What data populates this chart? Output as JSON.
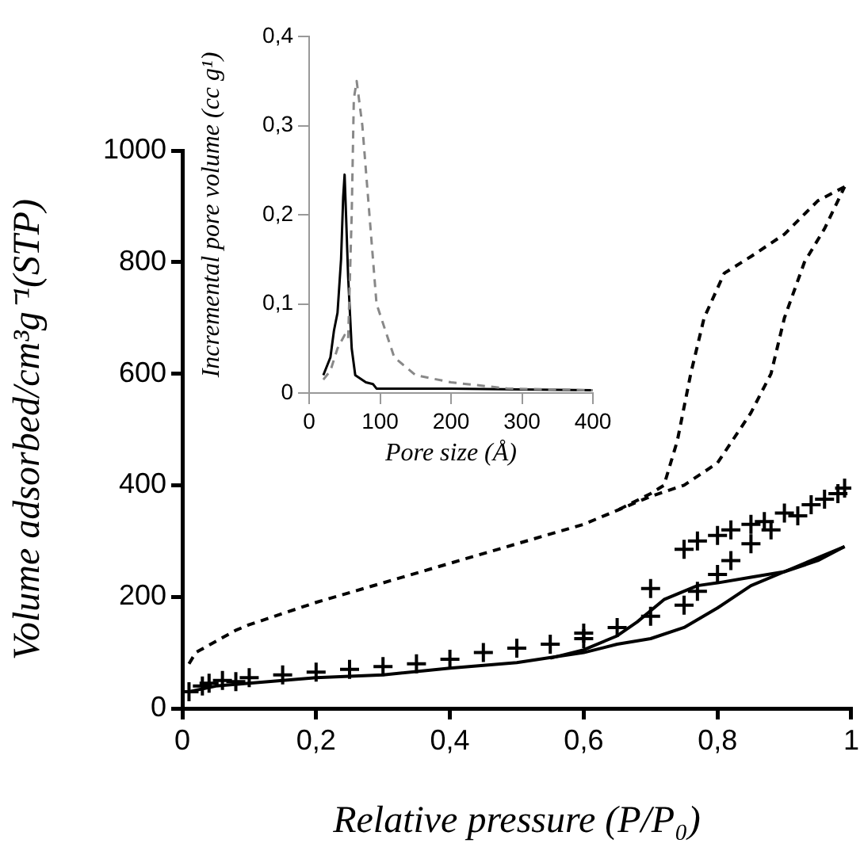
{
  "chart_data": [
    {
      "type": "line",
      "xlabel": "Relative pressure (P/P₀)",
      "ylabel": "Volume adsorbed/cm³g⁻¹(STP)",
      "xlim": [
        0,
        1
      ],
      "ylim": [
        0,
        1000
      ],
      "xticks": [
        0,
        {
          "value": 0.2,
          "label": "0,2"
        },
        {
          "value": 0.4,
          "label": "0,4"
        },
        {
          "value": 0.6,
          "label": "0,6"
        },
        {
          "value": 0.8,
          "label": "0,8"
        },
        1
      ],
      "yticks": [
        0,
        200,
        400,
        600,
        800,
        1000
      ],
      "grid": false,
      "legend": false,
      "series": [
        {
          "type": "line",
          "color": "#000000",
          "line_style": "dashed",
          "marker": "none",
          "x": [
            0.01,
            0.02,
            0.05,
            0.08,
            0.1,
            0.2,
            0.3,
            0.4,
            0.5,
            0.6,
            0.65,
            0.7,
            0.75,
            0.8,
            0.85,
            0.88,
            0.9,
            0.93,
            0.96,
            0.99
          ],
          "values": [
            80,
            100,
            120,
            140,
            150,
            190,
            225,
            260,
            295,
            330,
            355,
            380,
            400,
            440,
            530,
            600,
            700,
            800,
            860,
            935
          ]
        },
        {
          "type": "line",
          "color": "#000000",
          "line_style": "dashed",
          "marker": "none",
          "x": [
            0.99,
            0.95,
            0.9,
            0.85,
            0.81,
            0.78,
            0.76,
            0.74,
            0.72,
            0.7,
            0.65
          ],
          "values": [
            935,
            910,
            850,
            810,
            780,
            700,
            600,
            480,
            400,
            385,
            355
          ]
        },
        {
          "type": "line",
          "color": "#000000",
          "line_style": "solid",
          "marker": "none",
          "x": [
            0.01,
            0.05,
            0.1,
            0.2,
            0.3,
            0.4,
            0.5,
            0.6,
            0.65,
            0.7,
            0.75,
            0.8,
            0.85,
            0.9,
            0.95,
            0.99
          ],
          "values": [
            30,
            40,
            45,
            55,
            60,
            72,
            82,
            100,
            115,
            125,
            145,
            180,
            220,
            245,
            265,
            290
          ]
        },
        {
          "type": "line",
          "color": "#000000",
          "line_style": "solid",
          "marker": "none",
          "x": [
            0.99,
            0.95,
            0.9,
            0.85,
            0.8,
            0.77,
            0.72,
            0.68,
            0.65,
            0.6,
            0.55
          ],
          "values": [
            290,
            270,
            245,
            235,
            225,
            220,
            195,
            155,
            130,
            105,
            90
          ]
        },
        {
          "type": "scatter",
          "color": "#000000",
          "marker": "cross",
          "x": [
            0.01,
            0.02,
            0.03,
            0.04,
            0.05,
            0.06,
            0.08,
            0.1,
            0.15,
            0.2,
            0.25,
            0.3,
            0.35,
            0.4,
            0.45,
            0.5,
            0.55,
            0.6,
            0.6,
            0.65,
            0.7,
            0.7,
            0.75,
            0.77,
            0.8,
            0.82,
            0.85,
            0.75,
            0.77,
            0.8,
            0.82,
            0.85,
            0.87,
            0.88,
            0.9,
            0.92,
            0.94,
            0.96,
            0.98,
            0.99
          ],
          "values": [
            30,
            null,
            40,
            45,
            null,
            50,
            48,
            55,
            60,
            65,
            70,
            75,
            80,
            88,
            100,
            108,
            115,
            125,
            135,
            145,
            165,
            215,
            185,
            210,
            240,
            265,
            295,
            285,
            300,
            310,
            320,
            330,
            335,
            320,
            350,
            345,
            365,
            375,
            385,
            395
          ]
        }
      ]
    },
    {
      "type": "line",
      "xlabel": "Pore size (Å)",
      "ylabel": "Incremental pore volume (cc g¹)",
      "xlim": [
        0,
        400
      ],
      "ylim": [
        0,
        0.4
      ],
      "xticks": [
        0,
        100,
        200,
        300,
        400
      ],
      "yticks": [
        0,
        {
          "value": 0.1,
          "label": "0,1"
        },
        {
          "value": 0.2,
          "label": "0,2"
        },
        {
          "value": 0.3,
          "label": "0,3"
        },
        {
          "value": 0.4,
          "label": "0,4"
        }
      ],
      "grid": false,
      "legend": false,
      "series": [
        {
          "type": "line",
          "color": "#888888",
          "line_style": "dashed",
          "marker": "none",
          "x": [
            20,
            30,
            40,
            50,
            55,
            60,
            63,
            67,
            75,
            85,
            95,
            120,
            150,
            200,
            280,
            400
          ],
          "values": [
            0.015,
            0.025,
            0.05,
            0.065,
            0.06,
            0.2,
            0.33,
            0.35,
            0.3,
            0.2,
            0.1,
            0.04,
            0.02,
            0.012,
            0.005,
            0.003
          ]
        },
        {
          "type": "line",
          "color": "#000000",
          "line_style": "solid",
          "marker": "none",
          "x": [
            20,
            30,
            35,
            40,
            45,
            48,
            50,
            52,
            55,
            60,
            65,
            80,
            90,
            95,
            200,
            400
          ],
          "values": [
            0.02,
            0.04,
            0.07,
            0.09,
            0.15,
            0.22,
            0.245,
            0.2,
            0.13,
            0.05,
            0.02,
            0.012,
            0.01,
            0.005,
            0.005,
            0.003
          ]
        }
      ]
    }
  ]
}
